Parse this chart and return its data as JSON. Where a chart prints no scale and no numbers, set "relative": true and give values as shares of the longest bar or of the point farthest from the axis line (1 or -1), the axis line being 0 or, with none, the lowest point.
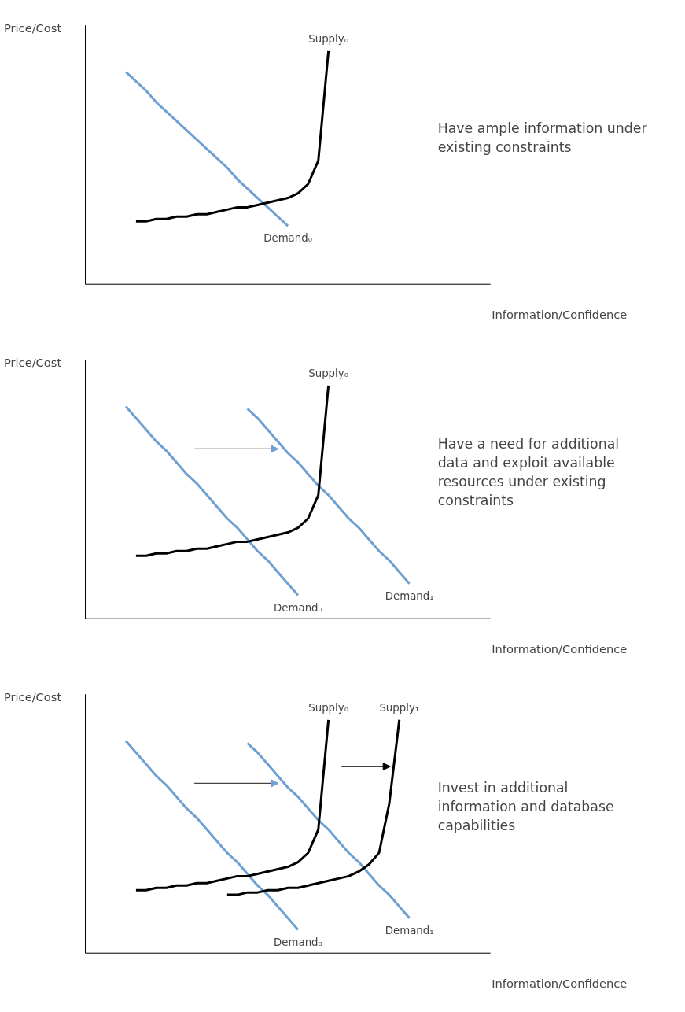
{
  "chart_data": [
    {
      "type": "line",
      "relative": true,
      "xlabel": "Information/Confidence",
      "ylabel": "Price/Cost",
      "annotations": [
        "Have ample information under existing constraints"
      ],
      "categories": [
        null,
        null,
        null,
        null,
        null,
        null,
        null,
        null,
        null,
        null,
        null,
        null,
        null,
        null,
        null,
        null,
        null,
        null,
        null,
        null,
        null,
        null,
        null,
        null,
        null,
        null,
        null,
        null,
        null,
        null,
        null,
        null,
        null,
        null,
        null,
        null,
        null,
        null,
        null,
        null,
        null
      ],
      "series": [
        {
          "name": "Demand₀",
          "color": "#6fa0d2",
          "values": [
            null,
            null,
            null,
            null,
            0.91,
            0.87,
            0.83,
            0.78,
            0.74,
            0.7,
            0.66,
            0.62,
            0.58,
            0.54,
            0.5,
            0.45,
            0.41,
            0.37,
            0.33,
            0.29,
            0.25,
            null,
            null,
            null,
            null,
            null,
            null,
            null,
            null,
            null,
            null,
            null,
            null,
            null,
            null,
            null,
            null,
            null,
            null,
            null,
            null
          ]
        },
        {
          "name": "Supply₀",
          "color": "#000000",
          "values": [
            null,
            null,
            null,
            null,
            null,
            0.27,
            0.27,
            0.28,
            0.28,
            0.29,
            0.29,
            0.3,
            0.3,
            0.31,
            0.32,
            0.33,
            0.33,
            0.34,
            0.35,
            0.36,
            0.37,
            0.39,
            0.43,
            0.53,
            1.0,
            null,
            null,
            null,
            null,
            null,
            null,
            null,
            null,
            null,
            null,
            null,
            null,
            null,
            null,
            null,
            null
          ]
        }
      ]
    },
    {
      "type": "line",
      "relative": true,
      "xlabel": "Information/Confidence",
      "ylabel": "Price/Cost",
      "annotations": [
        "Have a need for additional data and exploit available resources under existing constraints"
      ],
      "categories": [
        null,
        null,
        null,
        null,
        null,
        null,
        null,
        null,
        null,
        null,
        null,
        null,
        null,
        null,
        null,
        null,
        null,
        null,
        null,
        null,
        null,
        null,
        null,
        null,
        null,
        null,
        null,
        null,
        null,
        null,
        null,
        null,
        null,
        null,
        null,
        null,
        null,
        null,
        null,
        null,
        null
      ],
      "series": [
        {
          "name": "Demand₀",
          "color": "#6fa0d2",
          "values": [
            null,
            null,
            null,
            null,
            0.91,
            0.86,
            0.81,
            0.76,
            0.72,
            0.67,
            0.62,
            0.58,
            0.53,
            0.48,
            0.43,
            0.39,
            0.34,
            0.29,
            0.25,
            0.2,
            0.15,
            0.1,
            null,
            null,
            null,
            null,
            null,
            null,
            null,
            null,
            null,
            null,
            null,
            null,
            null,
            null,
            null,
            null,
            null,
            null,
            null
          ]
        },
        {
          "name": "Demand₁",
          "color": "#6fa0d2",
          "values": [
            null,
            null,
            null,
            null,
            null,
            null,
            null,
            null,
            null,
            null,
            null,
            null,
            null,
            null,
            null,
            null,
            0.9,
            0.86,
            0.81,
            0.76,
            0.71,
            0.67,
            0.62,
            0.57,
            0.53,
            0.48,
            0.43,
            0.39,
            0.34,
            0.29,
            0.25,
            0.2,
            0.15,
            null,
            null,
            null,
            null,
            null,
            null,
            null,
            null
          ]
        },
        {
          "name": "Supply₀",
          "color": "#000000",
          "values": [
            null,
            null,
            null,
            null,
            null,
            0.27,
            0.27,
            0.28,
            0.28,
            0.29,
            0.29,
            0.3,
            0.3,
            0.31,
            0.32,
            0.33,
            0.33,
            0.34,
            0.35,
            0.36,
            0.37,
            0.39,
            0.43,
            0.53,
            1.0,
            null,
            null,
            null,
            null,
            null,
            null,
            null,
            null,
            null,
            null,
            null,
            null,
            null,
            null,
            null,
            null
          ]
        }
      ]
    },
    {
      "type": "line",
      "relative": true,
      "xlabel": "Information/Confidence",
      "ylabel": "Price/Cost",
      "annotations": [
        "Invest in additional information and database capabilities"
      ],
      "categories": [
        null,
        null,
        null,
        null,
        null,
        null,
        null,
        null,
        null,
        null,
        null,
        null,
        null,
        null,
        null,
        null,
        null,
        null,
        null,
        null,
        null,
        null,
        null,
        null,
        null,
        null,
        null,
        null,
        null,
        null,
        null,
        null,
        null,
        null,
        null,
        null,
        null,
        null,
        null,
        null,
        null
      ],
      "series": [
        {
          "name": "Demand₀",
          "color": "#6fa0d2",
          "values": [
            null,
            null,
            null,
            null,
            0.91,
            0.86,
            0.81,
            0.76,
            0.72,
            0.67,
            0.62,
            0.58,
            0.53,
            0.48,
            0.43,
            0.39,
            0.34,
            0.29,
            0.25,
            0.2,
            0.15,
            0.1,
            null,
            null,
            null,
            null,
            null,
            null,
            null,
            null,
            null,
            null,
            null,
            null,
            null,
            null,
            null,
            null,
            null,
            null,
            null
          ]
        },
        {
          "name": "Demand₁",
          "color": "#6fa0d2",
          "values": [
            null,
            null,
            null,
            null,
            null,
            null,
            null,
            null,
            null,
            null,
            null,
            null,
            null,
            null,
            null,
            null,
            0.9,
            0.86,
            0.81,
            0.76,
            0.71,
            0.67,
            0.62,
            0.57,
            0.53,
            0.48,
            0.43,
            0.39,
            0.34,
            0.29,
            0.25,
            0.2,
            0.15,
            null,
            null,
            null,
            null,
            null,
            null,
            null,
            null
          ]
        },
        {
          "name": "Supply₀",
          "color": "#000000",
          "values": [
            null,
            null,
            null,
            null,
            null,
            0.27,
            0.27,
            0.28,
            0.28,
            0.29,
            0.29,
            0.3,
            0.3,
            0.31,
            0.32,
            0.33,
            0.33,
            0.34,
            0.35,
            0.36,
            0.37,
            0.39,
            0.43,
            0.53,
            1.0,
            null,
            null,
            null,
            null,
            null,
            null,
            null,
            null,
            null,
            null,
            null,
            null,
            null,
            null,
            null,
            null
          ]
        },
        {
          "name": "Supply₁",
          "color": "#000000",
          "values": [
            null,
            null,
            null,
            null,
            null,
            null,
            null,
            null,
            null,
            null,
            null,
            null,
            null,
            null,
            0.25,
            0.25,
            0.26,
            0.26,
            0.27,
            0.27,
            0.28,
            0.28,
            0.29,
            0.3,
            0.31,
            0.32,
            0.33,
            0.35,
            0.38,
            0.43,
            0.64,
            1.0,
            null,
            null,
            null,
            null,
            null,
            null,
            null,
            null,
            null
          ]
        }
      ]
    }
  ]
}
